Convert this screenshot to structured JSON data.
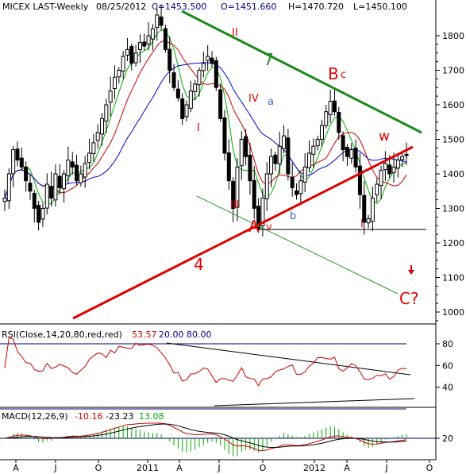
{
  "chart_data": [
    {
      "type": "candlestick",
      "title": "MICEX LAST-Weekly",
      "header": {
        "symbol": "MICEX LAST-Weekly",
        "date": "08/25/2012",
        "close": "C=1453.500",
        "open": "O=1451.660",
        "high": "H=1470.720",
        "low": "L=1450.100"
      },
      "x_tick_labels": [
        "A",
        "J",
        "O",
        "2011",
        "A",
        "J",
        "O",
        "2012",
        "A",
        "J",
        "O"
      ],
      "y_tick_labels": [
        "1800",
        "1700",
        "1600",
        "1500",
        "1400",
        "1300",
        "1200",
        "1100",
        "1000"
      ],
      "ylim": [
        920,
        1880
      ],
      "price_path": [
        [
          0,
          1330
        ],
        [
          1,
          1400
        ],
        [
          2,
          1470
        ],
        [
          3,
          1440
        ],
        [
          4,
          1420
        ],
        [
          5,
          1380
        ],
        [
          6,
          1350
        ],
        [
          7,
          1300
        ],
        [
          8,
          1260
        ],
        [
          9,
          1300
        ],
        [
          10,
          1370
        ],
        [
          11,
          1330
        ],
        [
          12,
          1400
        ],
        [
          13,
          1360
        ],
        [
          14,
          1400
        ],
        [
          15,
          1440
        ],
        [
          16,
          1420
        ],
        [
          17,
          1380
        ],
        [
          18,
          1400
        ],
        [
          19,
          1430
        ],
        [
          20,
          1460
        ],
        [
          21,
          1490
        ],
        [
          22,
          1520
        ],
        [
          23,
          1560
        ],
        [
          24,
          1600
        ],
        [
          25,
          1640
        ],
        [
          26,
          1680
        ],
        [
          27,
          1700
        ],
        [
          28,
          1740
        ],
        [
          29,
          1760
        ],
        [
          30,
          1720
        ],
        [
          31,
          1750
        ],
        [
          32,
          1780
        ],
        [
          33,
          1770
        ],
        [
          34,
          1800
        ],
        [
          35,
          1820
        ],
        [
          36,
          1860
        ],
        [
          37,
          1830
        ],
        [
          38,
          1760
        ],
        [
          39,
          1700
        ],
        [
          40,
          1650
        ],
        [
          41,
          1620
        ],
        [
          42,
          1560
        ],
        [
          43,
          1600
        ],
        [
          44,
          1640
        ],
        [
          45,
          1660
        ],
        [
          46,
          1700
        ],
        [
          47,
          1720
        ],
        [
          48,
          1740
        ],
        [
          49,
          1720
        ],
        [
          50,
          1650
        ],
        [
          51,
          1560
        ],
        [
          52,
          1460
        ],
        [
          53,
          1380
        ],
        [
          54,
          1300
        ],
        [
          55,
          1420
        ],
        [
          56,
          1500
        ],
        [
          57,
          1450
        ],
        [
          58,
          1380
        ],
        [
          59,
          1300
        ],
        [
          60,
          1240
        ],
        [
          61,
          1330
        ],
        [
          62,
          1400
        ],
        [
          63,
          1450
        ],
        [
          64,
          1430
        ],
        [
          65,
          1480
        ],
        [
          66,
          1510
        ],
        [
          67,
          1400
        ],
        [
          68,
          1360
        ],
        [
          69,
          1340
        ],
        [
          70,
          1380
        ],
        [
          71,
          1420
        ],
        [
          72,
          1460
        ],
        [
          73,
          1480
        ],
        [
          74,
          1500
        ],
        [
          75,
          1540
        ],
        [
          76,
          1580
        ],
        [
          77,
          1610
        ],
        [
          78,
          1580
        ],
        [
          79,
          1520
        ],
        [
          80,
          1470
        ],
        [
          81,
          1450
        ],
        [
          82,
          1470
        ],
        [
          83,
          1420
        ],
        [
          84,
          1340
        ],
        [
          85,
          1260
        ],
        [
          86,
          1270
        ],
        [
          87,
          1330
        ],
        [
          88,
          1370
        ],
        [
          89,
          1410
        ],
        [
          90,
          1430
        ],
        [
          91,
          1400
        ],
        [
          92,
          1420
        ],
        [
          93,
          1440
        ],
        [
          94,
          1450
        ],
        [
          95,
          1453
        ]
      ],
      "moving_averages": [
        {
          "color": "#00aa00"
        },
        {
          "color": "#cc0000"
        },
        {
          "color": "#0000cc"
        }
      ],
      "annotations": {
        "wave_labels": [
          "II",
          "III",
          "I",
          "IV",
          "III",
          "I",
          "a",
          "b",
          "w",
          "Bc",
          "C?",
          "A",
          "v",
          "4",
          "7"
        ],
        "trendline_7_label": "7",
        "trendline_4_label": "4",
        "B_label": "B",
        "c_label": "c",
        "A_label": "A",
        "v_label": "v",
        "w_label": "w",
        "a_label": "a",
        "b_label": "b",
        "C_label": "C?",
        "II_label": "II",
        "I_label_1": "I",
        "III_label": "III",
        "IV_label": "IV",
        "I_label_2": "I",
        "support_level": 1242
      },
      "colors": {
        "up": "#000000",
        "red_line": "#e00000",
        "green_line": "#1a8a1a",
        "thin_green": "#2a9a2a"
      }
    },
    {
      "type": "line",
      "title": "RSI(Close,14,20,80,red,red)",
      "header": {
        "label": "RSI(Close,14,20,80,red,red)",
        "value": "53.57",
        "lower": "20.00",
        "upper": "80.00"
      },
      "y_tick_labels": [
        "80",
        "60",
        "40"
      ],
      "ylim": [
        25,
        92
      ],
      "reference_lines": [
        80,
        20
      ],
      "colors": {
        "line": "#cc0000",
        "ref": "#000066"
      }
    },
    {
      "type": "line",
      "title": "MACD(12,26,9)",
      "header": {
        "label": "MACD(12,26,9)",
        "macd": "-10.16",
        "signal": "-23.23",
        "hist": "13.08"
      },
      "y_tick_labels": [
        "20"
      ],
      "colors": {
        "macd": "#cc0000",
        "signal": "#000000",
        "hist": "#00aa00"
      }
    }
  ]
}
